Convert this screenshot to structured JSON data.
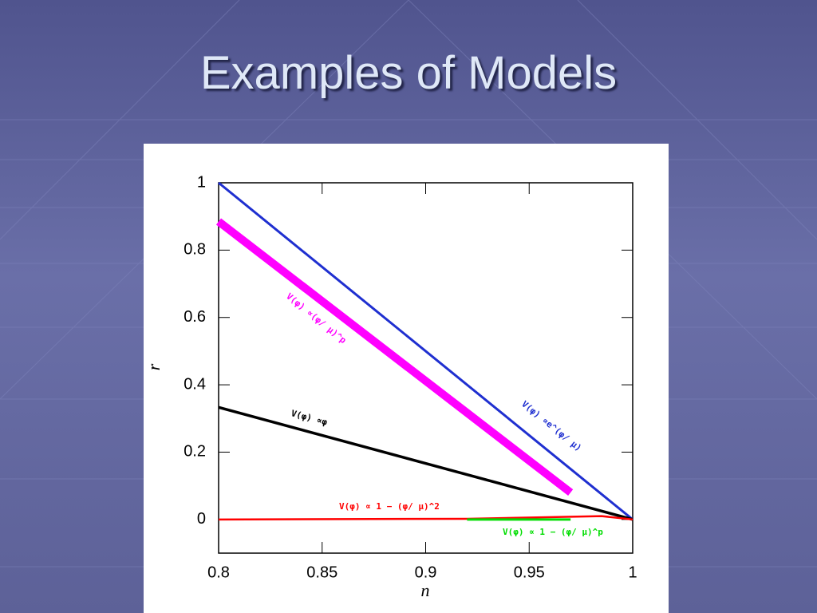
{
  "chart_data": {
    "type": "line",
    "title": "Examples of Models",
    "x_label": "n",
    "y_label": "r",
    "xlim": [
      0.8,
      1
    ],
    "ylim": [
      -0.1,
      1
    ],
    "xticks": [
      0.8,
      0.85,
      0.9,
      0.95,
      1
    ],
    "yticks": [
      0,
      0.2,
      0.4,
      0.6,
      0.8,
      1
    ],
    "series": [
      {
        "name": "V(φ) ∝e^(φ/ μ)",
        "color": "#1f2fd0",
        "x": [
          0.8,
          1
        ],
        "values": [
          1,
          0
        ]
      },
      {
        "name": "V(φ) ∝(φ/ μ)^p",
        "color": "#ff00ff",
        "x": [
          0.8,
          0.97
        ],
        "values": [
          0.885,
          0.08
        ]
      },
      {
        "name": "V(φ) ∝φ",
        "color": "#000000",
        "x": [
          0.8,
          1
        ],
        "values": [
          0.333,
          0
        ]
      },
      {
        "name": "V(φ) ∝ 1 − (φ/ μ)^2",
        "color": "#ff0000",
        "x": [
          0.8,
          0.92,
          0.985,
          1
        ],
        "values": [
          0,
          0.002,
          0.01,
          0
        ]
      },
      {
        "name": "V(φ) ∝ 1 − (φ/ μ)^p",
        "color": "#00dd00",
        "x": [
          0.92,
          0.97
        ],
        "values": [
          0,
          0
        ]
      }
    ]
  }
}
